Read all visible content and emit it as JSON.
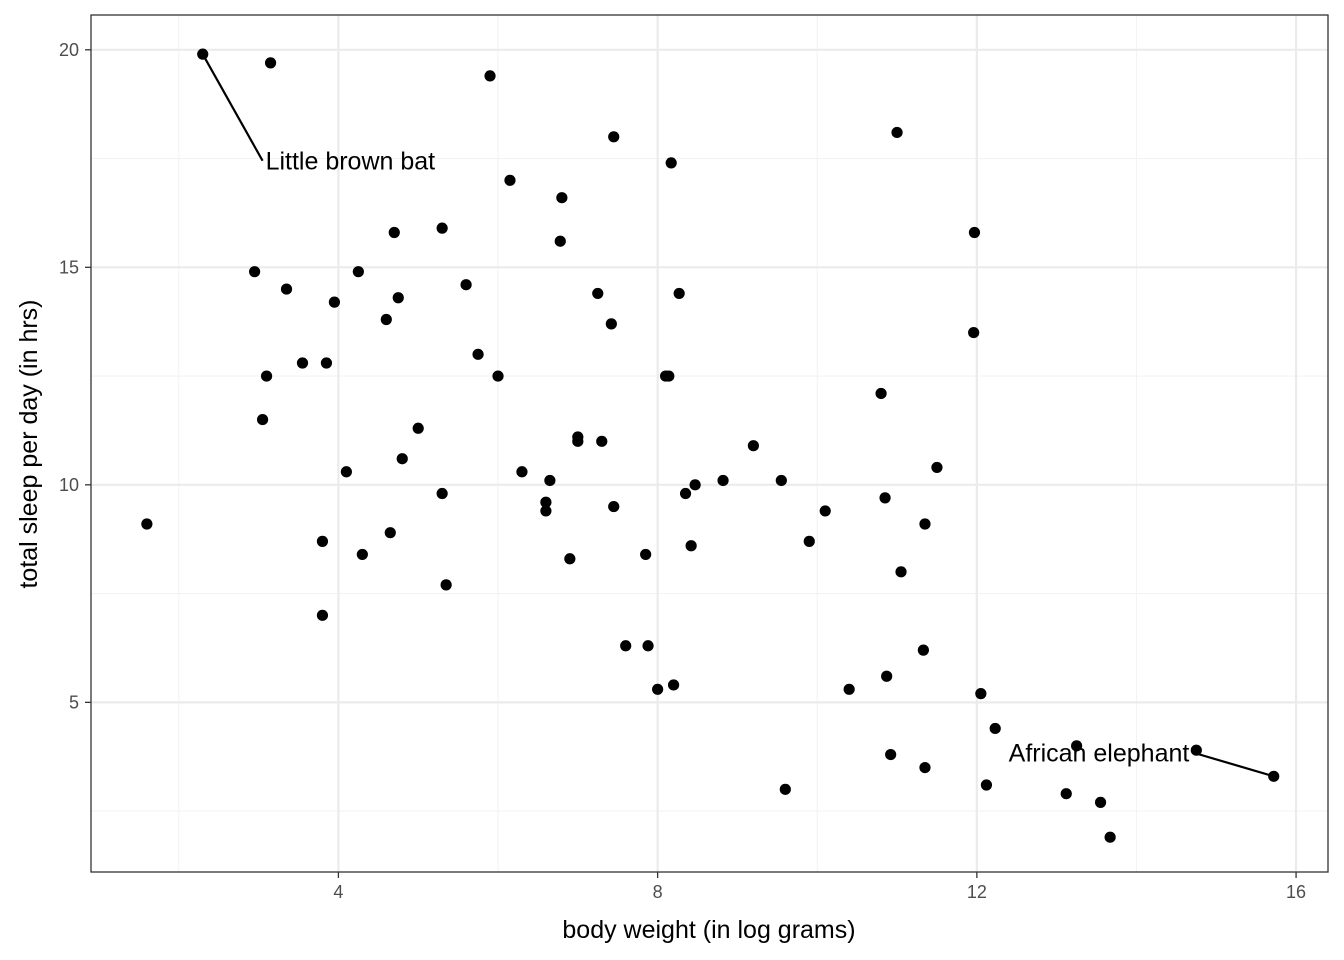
{
  "chart_data": {
    "type": "scatter",
    "title": "",
    "xlabel": "body weight (in log grams)",
    "ylabel": "total sleep per day (in hrs)",
    "xlim": [
      0.9,
      16.4
    ],
    "ylim": [
      1.1,
      20.8
    ],
    "xticks": [
      4,
      8,
      12,
      16
    ],
    "yticks": [
      5,
      10,
      15,
      20
    ],
    "grid": true,
    "point_color": "#000000",
    "panel_border_color": "#333333",
    "grid_major_color": "#ebebeb",
    "grid_minor_color": "#f3f3f3",
    "series": [
      {
        "points": [
          {
            "x": 1.6,
            "y": 9.1
          },
          {
            "x": 2.3,
            "y": 19.9
          },
          {
            "x": 3.15,
            "y": 19.7
          },
          {
            "x": 2.95,
            "y": 14.9
          },
          {
            "x": 3.35,
            "y": 14.5
          },
          {
            "x": 3.1,
            "y": 12.5
          },
          {
            "x": 3.05,
            "y": 11.5
          },
          {
            "x": 3.55,
            "y": 12.8
          },
          {
            "x": 3.85,
            "y": 12.8
          },
          {
            "x": 3.95,
            "y": 14.2
          },
          {
            "x": 4.25,
            "y": 14.9
          },
          {
            "x": 4.1,
            "y": 10.3
          },
          {
            "x": 3.8,
            "y": 8.7
          },
          {
            "x": 3.8,
            "y": 7.0
          },
          {
            "x": 4.3,
            "y": 8.4
          },
          {
            "x": 4.6,
            "y": 13.8
          },
          {
            "x": 4.7,
            "y": 15.8
          },
          {
            "x": 4.75,
            "y": 14.3
          },
          {
            "x": 4.8,
            "y": 10.6
          },
          {
            "x": 4.65,
            "y": 8.9
          },
          {
            "x": 5.0,
            "y": 11.3
          },
          {
            "x": 5.3,
            "y": 15.9
          },
          {
            "x": 5.3,
            "y": 9.8
          },
          {
            "x": 5.35,
            "y": 7.7
          },
          {
            "x": 5.6,
            "y": 14.6
          },
          {
            "x": 5.75,
            "y": 13.0
          },
          {
            "x": 5.9,
            "y": 19.4
          },
          {
            "x": 6.0,
            "y": 12.5
          },
          {
            "x": 6.15,
            "y": 17.0
          },
          {
            "x": 6.3,
            "y": 10.3
          },
          {
            "x": 6.6,
            "y": 9.6
          },
          {
            "x": 6.6,
            "y": 9.4
          },
          {
            "x": 6.65,
            "y": 10.1
          },
          {
            "x": 6.8,
            "y": 16.6
          },
          {
            "x": 6.78,
            "y": 15.6
          },
          {
            "x": 6.9,
            "y": 8.3
          },
          {
            "x": 7.0,
            "y": 11.1
          },
          {
            "x": 7.0,
            "y": 11.0
          },
          {
            "x": 7.25,
            "y": 14.4
          },
          {
            "x": 7.3,
            "y": 11.0
          },
          {
            "x": 7.45,
            "y": 18.0
          },
          {
            "x": 7.42,
            "y": 13.7
          },
          {
            "x": 7.45,
            "y": 9.5
          },
          {
            "x": 7.6,
            "y": 6.3
          },
          {
            "x": 7.85,
            "y": 8.4
          },
          {
            "x": 7.88,
            "y": 6.3
          },
          {
            "x": 8.0,
            "y": 5.3
          },
          {
            "x": 8.1,
            "y": 12.5
          },
          {
            "x": 8.14,
            "y": 12.5
          },
          {
            "x": 8.17,
            "y": 17.4
          },
          {
            "x": 8.2,
            "y": 5.4
          },
          {
            "x": 8.27,
            "y": 14.4
          },
          {
            "x": 8.35,
            "y": 9.8
          },
          {
            "x": 8.42,
            "y": 8.6
          },
          {
            "x": 8.47,
            "y": 10.0
          },
          {
            "x": 8.82,
            "y": 10.1
          },
          {
            "x": 9.2,
            "y": 10.9
          },
          {
            "x": 9.55,
            "y": 10.1
          },
          {
            "x": 9.6,
            "y": 3.0
          },
          {
            "x": 9.9,
            "y": 8.7
          },
          {
            "x": 10.1,
            "y": 9.4
          },
          {
            "x": 10.4,
            "y": 5.3
          },
          {
            "x": 10.8,
            "y": 12.1
          },
          {
            "x": 10.85,
            "y": 9.7
          },
          {
            "x": 10.87,
            "y": 5.6
          },
          {
            "x": 10.92,
            "y": 3.8
          },
          {
            "x": 11.0,
            "y": 18.1
          },
          {
            "x": 11.05,
            "y": 8.0
          },
          {
            "x": 11.35,
            "y": 9.1
          },
          {
            "x": 11.33,
            "y": 6.2
          },
          {
            "x": 11.35,
            "y": 3.5
          },
          {
            "x": 11.5,
            "y": 10.4
          },
          {
            "x": 11.97,
            "y": 15.8
          },
          {
            "x": 11.96,
            "y": 13.5
          },
          {
            "x": 12.05,
            "y": 5.2
          },
          {
            "x": 12.23,
            "y": 4.4
          },
          {
            "x": 12.12,
            "y": 3.1
          },
          {
            "x": 13.12,
            "y": 2.9
          },
          {
            "x": 13.25,
            "y": 4.0
          },
          {
            "x": 13.55,
            "y": 2.7
          },
          {
            "x": 13.67,
            "y": 1.9
          },
          {
            "x": 14.75,
            "y": 3.9
          },
          {
            "x": 15.72,
            "y": 3.3
          }
        ]
      }
    ],
    "annotations": [
      {
        "text": "Little brown bat",
        "point": {
          "x": 2.3,
          "y": 19.9
        },
        "label_at": {
          "x": 3.05,
          "y": 17.45
        },
        "anchor": "start"
      },
      {
        "text": "African elephant",
        "point": {
          "x": 15.72,
          "y": 3.3
        },
        "label_at": {
          "x": 14.7,
          "y": 3.85
        },
        "anchor": "end"
      }
    ]
  }
}
